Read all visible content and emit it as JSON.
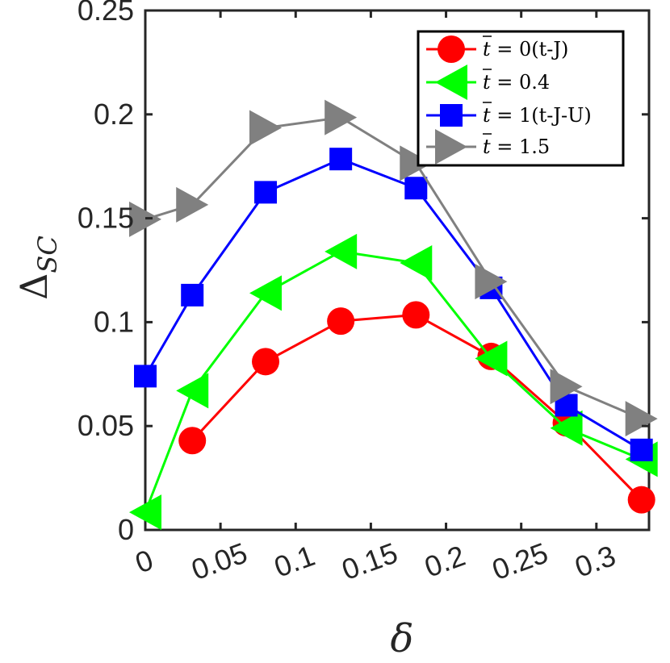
{
  "chart_data": {
    "type": "line",
    "xlabel": "δ",
    "ylabel_main": "Δ",
    "ylabel_sub": "SC",
    "xlim": [
      0,
      0.335
    ],
    "ylim": [
      0,
      0.25
    ],
    "x_ticks": [
      0,
      0.05,
      0.1,
      0.15,
      0.2,
      0.25,
      0.3
    ],
    "x_tick_labels": [
      "0",
      "0.05",
      "0.1",
      "0.15",
      "0.2",
      "0.25",
      "0.3"
    ],
    "y_ticks": [
      0,
      0.05,
      0.1,
      0.15,
      0.2,
      0.25
    ],
    "y_tick_labels": [
      "0",
      "0.05",
      "0.1",
      "0.15",
      "0.2",
      "0.25"
    ],
    "grid": false,
    "legend_position": "top-right",
    "series": [
      {
        "name": "t̄ = 0(t-J)",
        "color": "#ff0000",
        "marker": "circle",
        "x": [
          0.03125,
          0.08,
          0.13,
          0.18,
          0.23,
          0.28,
          0.33
        ],
        "y": [
          0.043,
          0.081,
          0.1005,
          0.1035,
          0.0835,
          0.0515,
          0.0145
        ]
      },
      {
        "name": "t̄ = 0.4",
        "color": "#00ff00",
        "marker": "triangle-left",
        "x": [
          0,
          0.03125,
          0.08,
          0.13,
          0.18,
          0.23,
          0.28,
          0.33
        ],
        "y": [
          0.0085,
          0.067,
          0.114,
          0.134,
          0.1285,
          0.0825,
          0.049,
          0.034
        ]
      },
      {
        "name": "t̄ = 1(t-J-U)",
        "color": "#0000ff",
        "marker": "square",
        "x": [
          0,
          0.03125,
          0.08,
          0.13,
          0.18,
          0.23,
          0.28,
          0.33
        ],
        "y": [
          0.074,
          0.113,
          0.1625,
          0.1785,
          0.1645,
          0.1165,
          0.06,
          0.0385
        ]
      },
      {
        "name": "t̄ = 1.5",
        "color": "#808080",
        "marker": "triangle-right",
        "x": [
          0,
          0.03125,
          0.08,
          0.13,
          0.18,
          0.23,
          0.28,
          0.33
        ],
        "y": [
          0.1495,
          0.1565,
          0.1935,
          0.1985,
          0.1765,
          0.1195,
          0.069,
          0.0535
        ]
      }
    ]
  },
  "legend": {
    "t_symbol": "t",
    "entries": [
      {
        "prefix": " = 0",
        "suffix": "(t-J)"
      },
      {
        "prefix": " = 0.4",
        "suffix": ""
      },
      {
        "prefix": " = 1",
        "suffix": "(t-J-U)"
      },
      {
        "prefix": " = 1.5",
        "suffix": ""
      }
    ]
  }
}
